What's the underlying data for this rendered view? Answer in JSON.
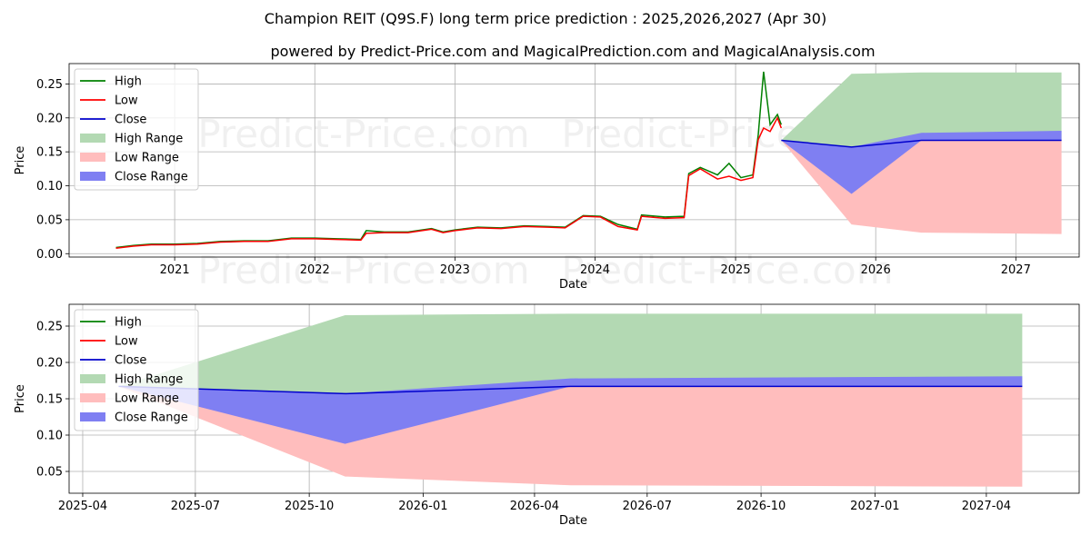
{
  "header": {
    "title": "Champion REIT (Q9S.F) long term price prediction : 2025,2026,2027 (Apr 30)",
    "subtitle": "powered by Predict-Price.com and MagicalPrediction.com and MagicalAnalysis.com"
  },
  "watermark": "Predict-Price.com",
  "colors": {
    "high": "#008000",
    "low": "#ff0000",
    "close": "#0000cc",
    "high_range": "#b3d9b3",
    "low_range": "#ffbdbd",
    "close_range": "#7f7ff2",
    "grid": "#b0b0b0"
  },
  "chart_data": [
    {
      "type": "line",
      "xlabel": "Date",
      "ylabel": "Price",
      "xlim": [
        "2020-04-01",
        "2027-06-15"
      ],
      "ylim": [
        -0.005,
        0.28
      ],
      "grid": true,
      "legend_position": "top-left",
      "x_ticks": [
        "2021",
        "2022",
        "2023",
        "2024",
        "2025",
        "2026",
        "2027"
      ],
      "y_ticks": [
        "0.00",
        "0.05",
        "0.10",
        "0.15",
        "0.20",
        "0.25"
      ],
      "x_tick_values": [
        "2021-01-01",
        "2022-01-01",
        "2023-01-01",
        "2024-01-01",
        "2025-01-01",
        "2026-01-01",
        "2027-01-01"
      ],
      "y_tick_values": [
        0,
        0.05,
        0.1,
        0.15,
        0.2,
        0.25
      ],
      "legend": [
        "High",
        "Low",
        "Close",
        "High Range",
        "Low Range",
        "Close Range"
      ],
      "history": {
        "dates": [
          "2020-08-01",
          "2020-09-15",
          "2020-11-01",
          "2021-01-01",
          "2021-03-01",
          "2021-05-01",
          "2021-07-01",
          "2021-09-01",
          "2021-11-01",
          "2022-01-01",
          "2022-03-01",
          "2022-05-01",
          "2022-05-15",
          "2022-07-01",
          "2022-09-01",
          "2022-11-01",
          "2022-12-01",
          "2023-01-01",
          "2023-03-01",
          "2023-05-01",
          "2023-07-01",
          "2023-09-01",
          "2023-10-15",
          "2023-12-01",
          "2024-01-15",
          "2024-03-01",
          "2024-04-20",
          "2024-05-01",
          "2024-07-01",
          "2024-08-20",
          "2024-09-01",
          "2024-10-01",
          "2024-11-15",
          "2024-12-15",
          "2025-01-15",
          "2025-02-15",
          "2025-03-01",
          "2025-03-15",
          "2025-04-01",
          "2025-04-20",
          "2025-04-30"
        ],
        "low": [
          0.008,
          0.011,
          0.013,
          0.013,
          0.014,
          0.017,
          0.018,
          0.018,
          0.022,
          0.022,
          0.021,
          0.02,
          0.03,
          0.031,
          0.031,
          0.036,
          0.031,
          0.034,
          0.038,
          0.037,
          0.04,
          0.039,
          0.038,
          0.055,
          0.054,
          0.04,
          0.035,
          0.055,
          0.052,
          0.053,
          0.115,
          0.125,
          0.11,
          0.114,
          0.108,
          0.112,
          0.168,
          0.185,
          0.18,
          0.2,
          0.185
        ],
        "high": [
          0.009,
          0.012,
          0.014,
          0.014,
          0.015,
          0.018,
          0.019,
          0.019,
          0.023,
          0.023,
          0.022,
          0.021,
          0.034,
          0.032,
          0.032,
          0.037,
          0.032,
          0.035,
          0.039,
          0.038,
          0.041,
          0.04,
          0.039,
          0.056,
          0.055,
          0.043,
          0.036,
          0.057,
          0.054,
          0.055,
          0.118,
          0.127,
          0.116,
          0.133,
          0.112,
          0.116,
          0.175,
          0.268,
          0.19,
          0.205,
          0.19
        ]
      },
      "forecast": {
        "dates": [
          "2025-04-30",
          "2025-10-30",
          "2026-04-30",
          "2027-04-30"
        ],
        "close": [
          0.167,
          0.157,
          0.167,
          0.167
        ],
        "high_range": [
          [
            0.167,
            0.167
          ],
          [
            0.265,
            0.157
          ],
          [
            0.267,
            0.167
          ],
          [
            0.267,
            0.167
          ]
        ],
        "low_range": [
          [
            0.167,
            0.167
          ],
          [
            0.157,
            0.043
          ],
          [
            0.167,
            0.031
          ],
          [
            0.167,
            0.029
          ]
        ],
        "close_range": [
          [
            0.167,
            0.167
          ],
          [
            0.157,
            0.088
          ],
          [
            0.178,
            0.167
          ],
          [
            0.181,
            0.167
          ]
        ]
      }
    },
    {
      "type": "line",
      "xlabel": "Date",
      "ylabel": "Price",
      "xlim": [
        "2025-03-21",
        "2027-06-15"
      ],
      "ylim": [
        0.02,
        0.28
      ],
      "grid": true,
      "legend_position": "top-left",
      "x_ticks": [
        "2025-04",
        "2025-07",
        "2025-10",
        "2026-01",
        "2026-04",
        "2026-07",
        "2026-10",
        "2027-01",
        "2027-04"
      ],
      "y_ticks": [
        "0.05",
        "0.10",
        "0.15",
        "0.20",
        "0.25"
      ],
      "x_tick_values": [
        "2025-04-01",
        "2025-07-01",
        "2025-10-01",
        "2026-01-01",
        "2026-04-01",
        "2026-07-01",
        "2026-10-01",
        "2027-01-01",
        "2027-04-01"
      ],
      "y_tick_values": [
        0.05,
        0.1,
        0.15,
        0.2,
        0.25
      ],
      "legend": [
        "High",
        "Low",
        "Close",
        "High Range",
        "Low Range",
        "Close Range"
      ],
      "forecast": {
        "dates": [
          "2025-04-30",
          "2025-10-30",
          "2026-04-30",
          "2027-04-30"
        ],
        "close": [
          0.167,
          0.157,
          0.167,
          0.167
        ],
        "high_range": [
          [
            0.167,
            0.167
          ],
          [
            0.265,
            0.157
          ],
          [
            0.267,
            0.167
          ],
          [
            0.267,
            0.167
          ]
        ],
        "low_range": [
          [
            0.167,
            0.167
          ],
          [
            0.157,
            0.043
          ],
          [
            0.167,
            0.031
          ],
          [
            0.167,
            0.029
          ]
        ],
        "close_range": [
          [
            0.167,
            0.167
          ],
          [
            0.157,
            0.088
          ],
          [
            0.178,
            0.167
          ],
          [
            0.181,
            0.167
          ]
        ]
      }
    }
  ]
}
